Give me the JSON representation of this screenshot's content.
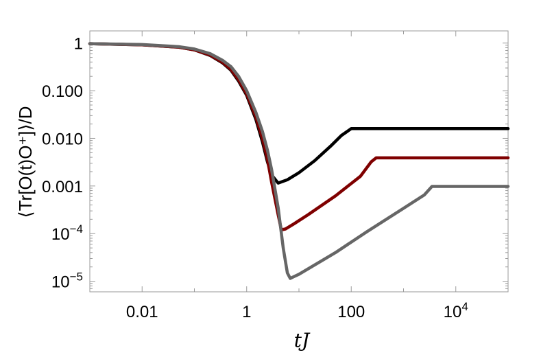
{
  "chart_data": {
    "type": "line",
    "title": "",
    "xlabel": "tJ",
    "ylabel": "⟨Tr[O(t)O⁺]⟩/D",
    "xscale": "log",
    "yscale": "log",
    "xlim": [
      0.001,
      100000
    ],
    "ylim": [
      6e-06,
      1.8
    ],
    "grid": false,
    "legend": "none",
    "x_ticks": [
      {
        "value": 0.01,
        "label": "0.01"
      },
      {
        "value": 1,
        "label": "1"
      },
      {
        "value": 100,
        "label": "100"
      },
      {
        "value": 10000,
        "label": "10",
        "sup": "4"
      }
    ],
    "y_ticks": [
      {
        "value": 1,
        "label": "1"
      },
      {
        "value": 0.1,
        "label": "0.100"
      },
      {
        "value": 0.01,
        "label": "0.010"
      },
      {
        "value": 0.001,
        "label": "0.001"
      },
      {
        "value": 0.0001,
        "label": "10",
        "sup": "−4"
      },
      {
        "value": 1e-05,
        "label": "10",
        "sup": "−5"
      }
    ],
    "series": [
      {
        "color": "#000000",
        "x": [
          0.001,
          0.01,
          0.05,
          0.1,
          0.2,
          0.35,
          0.5,
          0.7,
          1.0,
          1.5,
          2.0,
          2.5,
          3.0,
          4.0,
          6.0,
          10,
          20,
          40,
          65,
          100,
          200,
          1000,
          10000,
          100000
        ],
        "y": [
          0.97,
          0.92,
          0.82,
          0.72,
          0.55,
          0.38,
          0.27,
          0.16,
          0.08,
          0.025,
          0.0085,
          0.0032,
          0.0017,
          0.00115,
          0.00135,
          0.0019,
          0.0034,
          0.0068,
          0.0115,
          0.016,
          0.016,
          0.016,
          0.016,
          0.016
        ]
      },
      {
        "color": "#7f0000",
        "x": [
          0.001,
          0.01,
          0.05,
          0.1,
          0.2,
          0.35,
          0.5,
          0.7,
          1.0,
          1.5,
          2.0,
          2.5,
          3.0,
          4.0,
          4.6,
          5.5,
          8,
          15,
          50,
          150,
          240,
          300,
          1000,
          10000,
          100000
        ],
        "y": [
          0.97,
          0.92,
          0.82,
          0.72,
          0.56,
          0.39,
          0.28,
          0.17,
          0.085,
          0.028,
          0.01,
          0.0036,
          0.0012,
          0.00025,
          0.00012,
          0.000125,
          0.00016,
          0.00025,
          0.00062,
          0.0016,
          0.0032,
          0.0039,
          0.0039,
          0.0039,
          0.0039
        ]
      },
      {
        "color": "#666666",
        "x": [
          0.001,
          0.01,
          0.05,
          0.1,
          0.2,
          0.35,
          0.5,
          0.7,
          1.0,
          1.5,
          2.0,
          2.5,
          3.0,
          4.0,
          5.0,
          6.0,
          6.8,
          8.0,
          10,
          20,
          50,
          200,
          1000,
          2500,
          3500,
          10000,
          100000
        ],
        "y": [
          0.97,
          0.93,
          0.84,
          0.75,
          0.6,
          0.43,
          0.32,
          0.2,
          0.1,
          0.035,
          0.014,
          0.0056,
          0.0022,
          0.00035,
          5e-05,
          1.5e-05,
          1.15e-05,
          1.25e-05,
          1.4e-05,
          2.2e-05,
          4e-05,
          0.00011,
          0.00034,
          0.00065,
          0.00098,
          0.00098,
          0.00098
        ]
      }
    ]
  }
}
